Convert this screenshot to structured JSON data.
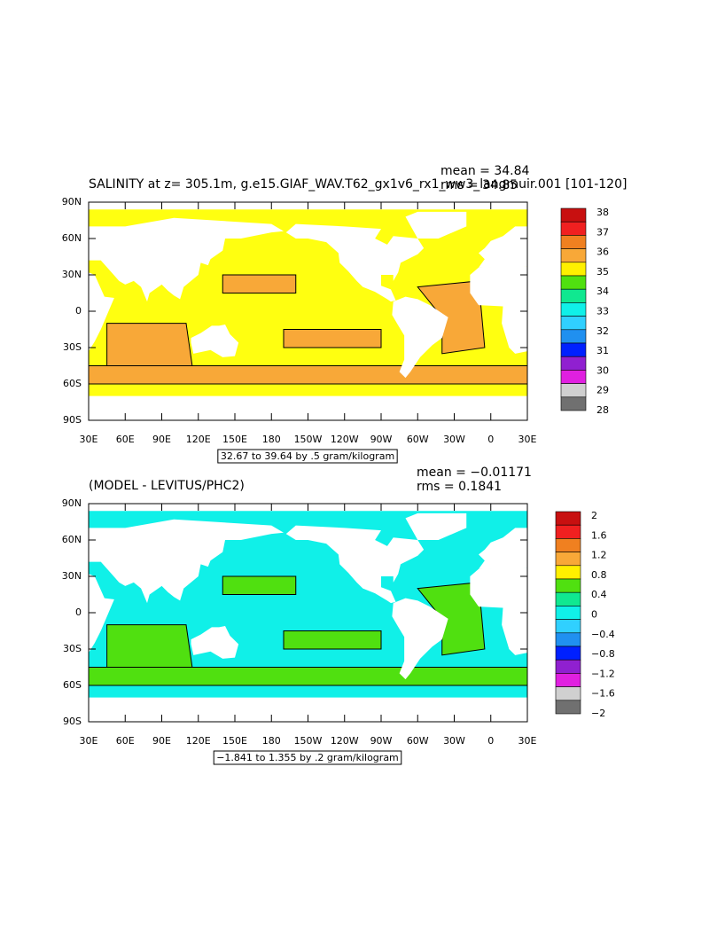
{
  "panels": [
    {
      "title": "SALINITY at z= 305.1m, g.e15.GIAF_WAV.T62_gx1v6_rx1_ww3_langmuir.001 [101-120]",
      "mean": "mean = 34.84",
      "rms": "rms = 34.85",
      "lat_labels": [
        "90N",
        "60N",
        "30N",
        "0",
        "30S",
        "60S",
        "90S"
      ],
      "lon_labels": [
        "30E",
        "60E",
        "90E",
        "120E",
        "150E",
        "180",
        "150W",
        "120W",
        "90W",
        "60W",
        "30W",
        "0",
        "30E"
      ],
      "contour_info": "32.67 to 39.64 by .5 gram/kilogram",
      "ocean_color": "#ffff10",
      "patch_color": "#f8a838",
      "colorbar": {
        "labels": [
          "38",
          "37",
          "36",
          "35",
          "34",
          "33",
          "32",
          "31",
          "30",
          "29",
          "28"
        ],
        "colors": [
          "#c81010",
          "#f02020",
          "#f08020",
          "#f8a838",
          "#fff000",
          "#50e010",
          "#10e890",
          "#10f0e8",
          "#30d0ff",
          "#2090f0",
          "#0020ff",
          "#9020d0",
          "#e020e0",
          "#d0d0d0",
          "#707070"
        ]
      }
    },
    {
      "title": "(MODEL - LEVITUS/PHC2)",
      "mean": "mean = −0.01171",
      "rms": "rms = 0.1841",
      "lat_labels": [
        "90N",
        "60N",
        "30N",
        "0",
        "30S",
        "60S",
        "90S"
      ],
      "lon_labels": [
        "30E",
        "60E",
        "90E",
        "120E",
        "150E",
        "180",
        "150W",
        "120W",
        "90W",
        "60W",
        "30W",
        "0",
        "30E"
      ],
      "contour_info": "−1.841 to 1.355 by .2 gram/kilogram",
      "ocean_color": "#10f0e8",
      "patch_color": "#50e010",
      "colorbar": {
        "labels": [
          "2",
          "1.6",
          "1.2",
          "0.8",
          "0.4",
          "0",
          "−0.4",
          "−0.8",
          "−1.2",
          "−1.6",
          "−2"
        ],
        "colors": [
          "#c81010",
          "#f02020",
          "#f08020",
          "#f8a838",
          "#fff000",
          "#50e010",
          "#10e890",
          "#10f0e8",
          "#30d0ff",
          "#2090f0",
          "#0020ff",
          "#9020d0",
          "#e020e0",
          "#d0d0d0",
          "#707070"
        ]
      }
    }
  ]
}
